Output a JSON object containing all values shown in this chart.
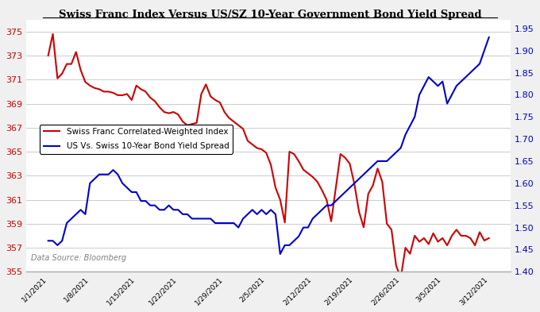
{
  "title": "Swiss Franc Index Versus US/SZ 10-Year Government Bond Yield Spread",
  "red_label": "Swiss Franc Correlated-Weighted Index",
  "blue_label": "US Vs. Swiss 10-Year Bond Yield Spread",
  "source": "Data Source: Bloomberg",
  "x_labels": [
    "1/1/2021",
    "1/8/2021",
    "1/15/2021",
    "1/22/2021",
    "1/29/2021",
    "2/5/2021",
    "2/12/2021",
    "2/19/2021",
    "2/26/2021",
    "3/5/2021",
    "3/12/2021"
  ],
  "red_y": [
    373.0,
    374.8,
    371.1,
    371.5,
    372.3,
    372.3,
    373.3,
    371.8,
    370.8,
    370.5,
    370.3,
    370.2,
    370.0,
    370.0,
    369.9,
    369.7,
    369.7,
    369.8,
    369.3,
    370.5,
    370.2,
    370.0,
    369.5,
    369.2,
    368.7,
    368.3,
    368.2,
    368.3,
    368.1,
    367.5,
    367.2,
    367.3,
    367.4,
    369.8,
    370.6,
    369.6,
    369.3,
    369.1,
    368.3,
    367.8,
    367.5,
    367.2,
    366.9,
    365.9,
    365.6,
    365.3,
    365.2,
    364.9,
    363.9,
    362.0,
    361.0,
    359.1,
    365.0,
    364.8,
    364.2,
    363.5,
    363.2,
    362.9,
    362.5,
    361.8,
    361.0,
    359.2,
    362.0,
    364.8,
    364.5,
    364.0,
    362.3,
    360.0,
    358.7,
    361.5,
    362.2,
    363.6,
    362.5,
    359.0,
    358.5,
    355.5,
    354.5,
    357.0,
    356.5,
    358.0,
    357.5,
    357.8,
    357.3,
    358.2,
    357.5,
    357.8,
    357.2,
    358.0,
    358.5,
    358.0,
    358.0,
    357.8,
    357.2,
    358.3,
    357.6,
    357.8
  ],
  "blue_y": [
    1.47,
    1.47,
    1.46,
    1.47,
    1.51,
    1.52,
    1.53,
    1.54,
    1.53,
    1.6,
    1.61,
    1.62,
    1.62,
    1.62,
    1.63,
    1.62,
    1.6,
    1.59,
    1.58,
    1.58,
    1.56,
    1.56,
    1.55,
    1.55,
    1.54,
    1.54,
    1.55,
    1.54,
    1.54,
    1.53,
    1.53,
    1.52,
    1.52,
    1.52,
    1.52,
    1.52,
    1.51,
    1.51,
    1.51,
    1.51,
    1.51,
    1.5,
    1.52,
    1.53,
    1.54,
    1.53,
    1.54,
    1.53,
    1.54,
    1.53,
    1.44,
    1.46,
    1.46,
    1.47,
    1.48,
    1.5,
    1.5,
    1.52,
    1.53,
    1.54,
    1.55,
    1.55,
    1.56,
    1.57,
    1.58,
    1.59,
    1.6,
    1.61,
    1.62,
    1.63,
    1.64,
    1.65,
    1.65,
    1.65,
    1.66,
    1.67,
    1.68,
    1.71,
    1.73,
    1.75,
    1.8,
    1.82,
    1.84,
    1.83,
    1.82,
    1.83,
    1.78,
    1.8,
    1.82,
    1.83,
    1.84,
    1.85,
    1.86,
    1.87,
    1.9,
    1.93
  ],
  "red_ylim": [
    355,
    376
  ],
  "blue_ylim": [
    1.4,
    1.97
  ],
  "red_yticks": [
    355,
    357,
    359,
    361,
    363,
    365,
    367,
    369,
    371,
    373,
    375
  ],
  "blue_yticks": [
    1.4,
    1.45,
    1.5,
    1.55,
    1.6,
    1.65,
    1.7,
    1.75,
    1.8,
    1.85,
    1.9,
    1.95
  ],
  "red_color": "#cc0000",
  "blue_color": "#0000cc",
  "bg_color": "#f0f0f0",
  "plot_bg": "#ffffff"
}
